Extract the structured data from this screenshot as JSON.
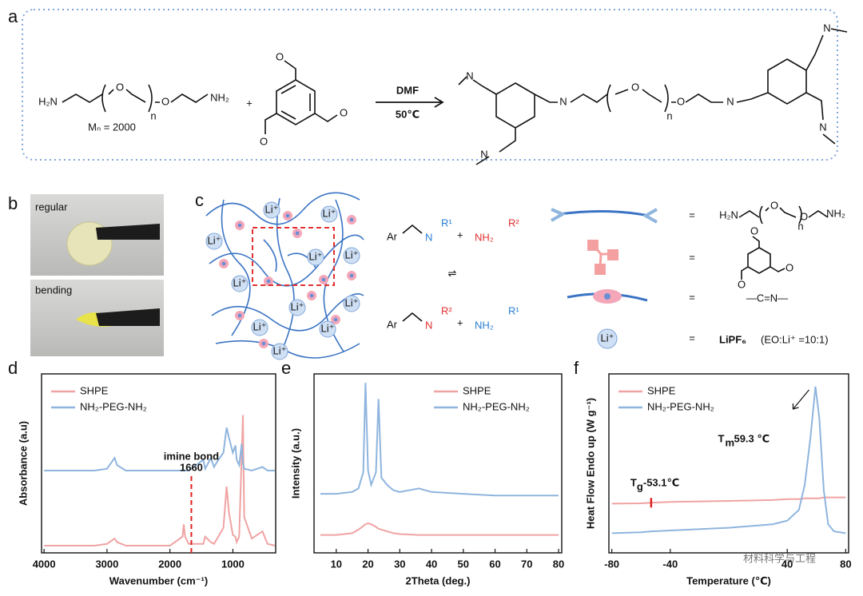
{
  "panel_a": {
    "label": "a",
    "amine": {
      "h2n": "H₂N",
      "nh2": "NH₂",
      "o_inner": "O",
      "o_outer": "O",
      "repeat": "n",
      "mn": "Mₙ = 2000"
    },
    "plus": "+",
    "aldehyde": {
      "o_top": "O",
      "o_left": "O",
      "o_right": "O"
    },
    "conditions": {
      "solvent": "DMF",
      "temperature": "50℃"
    },
    "product": {
      "n_chain_left": "N",
      "n_chain_right": "N",
      "n_left_top": "N",
      "n_left_bottom": "N",
      "n_right_top": "N",
      "n_right_bottom": "N",
      "o_inner": "O",
      "o_outer": "O",
      "repeat": "n"
    }
  },
  "panel_b": {
    "label": "b",
    "photos": [
      "regular",
      "bending"
    ]
  },
  "panel_c": {
    "label": "c",
    "ions": [
      "Li⁺",
      "Li⁺",
      "Li⁺",
      "Li⁺",
      "Li⁺",
      "Li⁺",
      "Li⁺",
      "Li⁺",
      "Li⁺",
      "Li⁺",
      "Li⁺"
    ],
    "reaction_top": {
      "ar": "Ar",
      "n": "N",
      "r": "R¹",
      "plus": "+",
      "amine": "NH₂",
      "amine_r": "R²"
    },
    "equilibrium": "⇌",
    "reaction_bottom": {
      "ar": "Ar",
      "n": "N",
      "r": "R²",
      "plus": "+",
      "amine": "NH₂",
      "amine_r": "R¹"
    },
    "legend": {
      "equals": [
        "=",
        "=",
        "=",
        "="
      ],
      "peg": {
        "h2n": "H₂N",
        "o_inner": "O",
        "o_outer": "O",
        "repeat": "n",
        "nh2": "NH₂"
      },
      "aldehyde": {
        "o_top": "O",
        "o_left": "O",
        "o_right": "O"
      },
      "imine": "—C=N—",
      "ion": "Li⁺",
      "salt": "LiPF₆",
      "ratio": "(EO:Li⁺ =10:1)"
    }
  },
  "chart_data": [
    {
      "type": "line",
      "panel_label": "d",
      "xlabel": "Wavenumber (cm⁻¹)",
      "ylabel": "Absorbance (a.u)",
      "xlim": [
        4040,
        320
      ],
      "ylim": [
        0,
        10
      ],
      "xticks": [
        4000,
        3000,
        2000,
        1000
      ],
      "legend": "upper left",
      "x": [
        4000,
        3200,
        3000,
        2920,
        2880,
        2840,
        2700,
        2000,
        1800,
        1780,
        1760,
        1700,
        1470,
        1440,
        1350,
        1300,
        1250,
        1150,
        1100,
        1060,
        1000,
        960,
        940,
        900,
        860,
        840,
        820,
        700,
        530,
        450,
        330
      ],
      "series": [
        {
          "name": "SHPE",
          "color": "#f0a3a3",
          "values": [
            0.4,
            0.4,
            0.5,
            0.7,
            0.8,
            0.6,
            0.4,
            0.4,
            0.9,
            1.6,
            0.9,
            0.5,
            0.5,
            0.9,
            0.6,
            0.5,
            0.8,
            1.4,
            3.7,
            2.2,
            1.0,
            0.9,
            0.6,
            0.9,
            5.5,
            7.7,
            2.0,
            0.8,
            1.2,
            0.5,
            0.4
          ]
        },
        {
          "name": "NH₂-PEG-NH₂",
          "color": "#8fb5de",
          "values": [
            4.6,
            4.6,
            4.7,
            5.1,
            5.3,
            4.9,
            4.6,
            4.6,
            4.6,
            4.6,
            4.6,
            4.6,
            5.2,
            4.7,
            5.3,
            4.8,
            5.1,
            5.6,
            7.0,
            6.4,
            5.6,
            6.0,
            5.2,
            4.9,
            6.1,
            5.0,
            4.7,
            4.6,
            4.8,
            4.6,
            4.6
          ]
        }
      ],
      "marker": {
        "x": 1660,
        "caption": "imine bond",
        "color": "#e02020"
      }
    },
    {
      "type": "line",
      "panel_label": "e",
      "xlabel": "2Theta (deg.)",
      "ylabel": "Intensity (a.u.)",
      "xlim": [
        3,
        81
      ],
      "ylim": [
        0,
        10
      ],
      "xticks": [
        10,
        20,
        30,
        40,
        50,
        60,
        70,
        80
      ],
      "legend": "upper right",
      "x": [
        5,
        10,
        15,
        17,
        18.5,
        19.2,
        20,
        21,
        22.5,
        23.3,
        24.2,
        26,
        28,
        30,
        36,
        40,
        50,
        60,
        70,
        80
      ],
      "series": [
        {
          "name": "SHPE",
          "color": "#f0a3a3",
          "values": [
            1.0,
            1.0,
            1.1,
            1.3,
            1.5,
            1.6,
            1.65,
            1.6,
            1.45,
            1.35,
            1.3,
            1.2,
            1.1,
            1.05,
            1.0,
            1.0,
            1.0,
            1.0,
            1.0,
            1.0
          ]
        },
        {
          "name": "NH₂-PEG-NH₂",
          "color": "#8fb5de",
          "values": [
            3.3,
            3.3,
            3.4,
            3.6,
            4.5,
            9.5,
            4.6,
            3.8,
            4.5,
            8.6,
            4.2,
            3.8,
            3.5,
            3.4,
            3.6,
            3.4,
            3.3,
            3.2,
            3.2,
            3.2
          ]
        }
      ]
    },
    {
      "type": "line",
      "panel_label": "f",
      "xlabel": "Temperature (℃)",
      "ylabel": "Heat Flow Endo up (W g⁻¹)",
      "xlim": [
        -82,
        82
      ],
      "ylim": [
        0,
        10
      ],
      "xticks": [
        -80,
        -40,
        40,
        80
      ],
      "legend": "upper left",
      "x": [
        -80,
        -60,
        -53.1,
        -40,
        0,
        30,
        40,
        48,
        52,
        56,
        59.3,
        62,
        65,
        68,
        72,
        80
      ],
      "series": [
        {
          "name": "SHPE",
          "color": "#f0a3a3",
          "values": [
            2.75,
            2.77,
            2.8,
            2.85,
            2.9,
            2.95,
            3.0,
            3.0,
            3.05,
            3.05,
            3.05,
            3.05,
            3.1,
            3.1,
            3.1,
            3.1
          ]
        },
        {
          "name": "NH₂-PEG-NH₂",
          "color": "#8fb5de",
          "values": [
            1.1,
            1.15,
            1.2,
            1.25,
            1.4,
            1.6,
            1.8,
            2.4,
            3.8,
            6.5,
            9.3,
            7.5,
            3.5,
            1.6,
            1.2,
            1.1
          ]
        }
      ],
      "annotations": [
        {
          "symbol": "T",
          "subscript": "g",
          "text": "-53.1℃",
          "x": -53.1,
          "color": "#e02020"
        },
        {
          "symbol": "T",
          "subscript": "m",
          "text": "59.3 ℃",
          "x": 59.3
        }
      ]
    }
  ],
  "watermark": "材料科学与工程"
}
